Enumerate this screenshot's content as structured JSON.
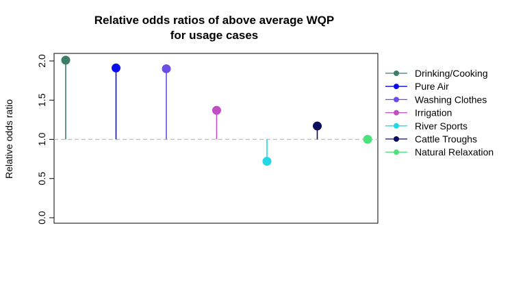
{
  "chart_data": {
    "type": "lollipop",
    "title_lines": [
      "Relative odds ratios of above average WQP",
      "for usage cases"
    ],
    "ylabel": "Relative odds ratio",
    "xlabel": "",
    "ylim": [
      0,
      2.0
    ],
    "yticks": [
      "0.0",
      "0.5",
      "1.0",
      "1.5",
      "2.0"
    ],
    "baseline": 1.0,
    "grid": false,
    "legend_position": "right",
    "series": [
      {
        "name": "Drinking/Cooking",
        "value": 2.01,
        "color": "#3b7f66"
      },
      {
        "name": "Pure Air",
        "value": 1.91,
        "color": "#0a0aee"
      },
      {
        "name": "Washing Clothes",
        "value": 1.9,
        "color": "#6b4de6"
      },
      {
        "name": "Irrigation",
        "value": 1.37,
        "color": "#c14fc4"
      },
      {
        "name": "River Sports",
        "value": 0.72,
        "color": "#22d7e6"
      },
      {
        "name": "Cattle Troughs",
        "value": 1.17,
        "color": "#0b0b5e"
      },
      {
        "name": "Natural Relaxation",
        "value": 1.0,
        "color": "#4ce37c"
      }
    ]
  }
}
